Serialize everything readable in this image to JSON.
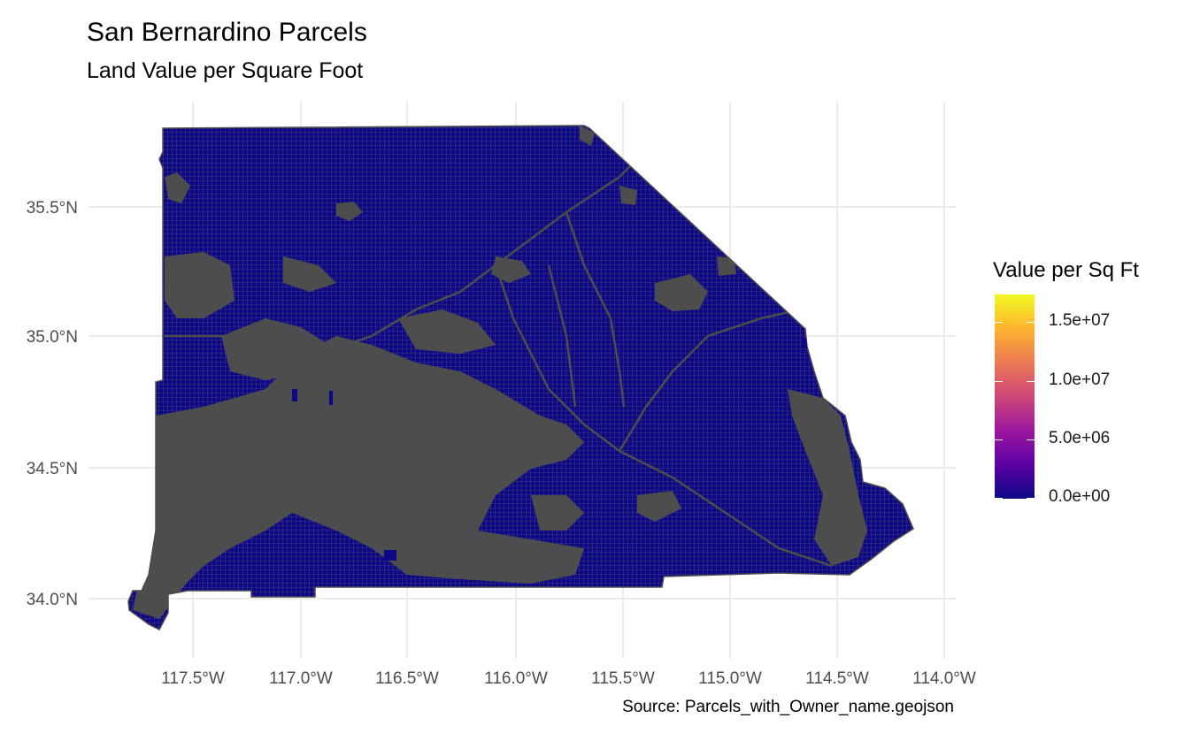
{
  "title": "San Bernardino Parcels",
  "subtitle": "Land Value per Square Foot",
  "caption": "Source: Parcels_with_Owner_name.geojson",
  "axes": {
    "x_ticks": [
      "117.5°W",
      "117.0°W",
      "116.5°W",
      "116.0°W",
      "115.5°W",
      "115.0°W",
      "114.5°W",
      "114.0°W"
    ],
    "y_ticks": [
      "35.5°N",
      "35.0°N",
      "34.5°N",
      "34.0°N"
    ],
    "x_range": [
      -117.8,
      -113.9
    ],
    "y_range": [
      33.85,
      35.85
    ]
  },
  "legend": {
    "title": "Value per Sq Ft",
    "labels": [
      "1.5e+07",
      "1.0e+07",
      "5.0e+06",
      "0.0e+00"
    ],
    "colors": [
      "#0d0887",
      "#5c01a6",
      "#9c179e",
      "#cc4778",
      "#ed7953",
      "#fdb42f",
      "#f0f921"
    ]
  },
  "colors": {
    "parcel_fill": "#0d0887",
    "parcel_border": "#4d4d4d",
    "grid": "#ebebeb"
  }
}
